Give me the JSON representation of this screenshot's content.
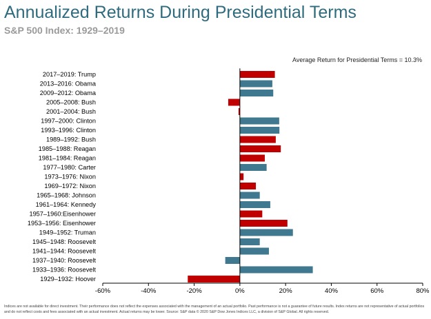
{
  "header": {
    "title": "Annualized Returns During Presidential Terms",
    "subtitle": "S&P 500 Index: 1929–2019"
  },
  "average_note": "Average Return for Presidential Terms = 10.3%",
  "footnote": "Indices are not available for direct investment. Their performance does not reflect the expenses associated with the management of an actual portfolio. Past performance is not a guarantee of future results. Index returns are not representative of actual portfolios and do not reflect costs and fees associated with an actual investment. Actual returns may be lower. Source: S&P data © 2020 S&P Dow Jones Indices LLC, a division of S&P Global. All rights reserved.",
  "colors": {
    "republican": "#c00000",
    "democrat": "#40788f",
    "axis": "#000000"
  },
  "chart_data": {
    "type": "bar",
    "orientation": "horizontal",
    "title": "Annualized Returns During Presidential Terms",
    "subtitle": "S&P 500 Index: 1929–2019",
    "categories": [
      "2017–2019: Trump",
      "2013–2016: Obama",
      "2009–2012: Obama",
      "2005–2008: Bush",
      "2001–2004: Bush",
      "1997–2000: Clinton",
      "1993–1996: Clinton",
      "1989–1992: Bush",
      "1985–1988: Reagan",
      "1981–1984: Reagan",
      "1977–1980: Carter",
      "1973–1976: Nixon",
      "1969–1972: Nixon",
      "1965–1968: Johnson",
      "1961–1964: Kennedy",
      "1957–1960:Eisenhower",
      "1953–1956: Eisenhower",
      "1949–1952: Truman",
      "1945–1948: Roosevelt",
      "1941–1944: Roosevelt",
      "1937–1940: Roosevelt",
      "1933–1936: Roosevelt",
      "1929–1932: Hoover"
    ],
    "values": [
      15.3,
      14.2,
      14.6,
      -5.1,
      -0.6,
      17.2,
      17.3,
      15.7,
      17.9,
      10.9,
      11.7,
      1.6,
      7.0,
      8.7,
      13.3,
      9.8,
      20.8,
      23.2,
      8.7,
      12.7,
      -6.4,
      31.9,
      -22.8
    ],
    "party": [
      "R",
      "D",
      "D",
      "R",
      "R",
      "D",
      "D",
      "R",
      "R",
      "R",
      "D",
      "R",
      "R",
      "D",
      "D",
      "R",
      "R",
      "D",
      "D",
      "D",
      "D",
      "D",
      "R"
    ],
    "x_ticks": [
      "-60%",
      "-40%",
      "-20%",
      "0%",
      "20%",
      "40%",
      "60%",
      "80%"
    ],
    "xlim": [
      -60,
      80
    ],
    "grid": false,
    "legend": "none"
  }
}
